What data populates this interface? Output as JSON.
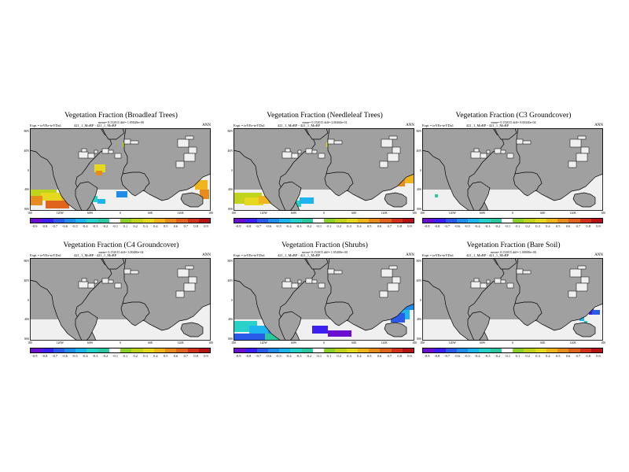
{
  "layout": {
    "columns": [
      38,
      297,
      537
    ],
    "rows": [
      142,
      307
    ]
  },
  "palette": [
    "#6a0ecf",
    "#3c1ef0",
    "#2a5ae8",
    "#1e8ce8",
    "#1eb4f0",
    "#28d2c8",
    "#2ec8a0",
    "#ffffff",
    "#8ad028",
    "#c0d41e",
    "#e6d81e",
    "#f0b41e",
    "#e68c1e",
    "#e0641e",
    "#d0321e",
    "#b41414"
  ],
  "land_gray": "#a0a0a0",
  "zero_white": "#f0f0f0",
  "y_ticks": [
    "80N",
    "40N",
    "0",
    "40S",
    "80S"
  ],
  "x_ticks": [
    "180",
    "120W",
    "60W",
    "0",
    "60E",
    "120E",
    "180"
  ],
  "panels": [
    {
      "id": "broadleaf",
      "title": "Vegetation Fraction (Broadleaf Trees)",
      "stats": "mean= 0.152015  diff= 1.05840e+00",
      "expt_label": "Expt = teYEe-teYDa1",
      "case_label": "421_1_MoBP - 421_1_MoBP",
      "season": "ANN",
      "colorbar_labels": [
        "-0.9",
        "-0.8",
        "-0.7",
        "-0.6",
        "-0.5",
        "-0.4",
        "-0.3",
        "-0.2",
        "-0.1",
        "0.1",
        "0.2",
        "0.3",
        "0.4",
        "0.5",
        "0.6",
        "0.7",
        "0.8",
        "0.9"
      ],
      "shading": "broadleaf"
    },
    {
      "id": "needleleaf",
      "title": "Vegetation Fraction (Needleleaf Trees)",
      "stats": "mean= 0.152015  diff= 2.00260e-01",
      "expt_label": "Expt = teYEe-teYDa1",
      "case_label": "421_1_MoBP - 421_1_MoBP",
      "season": "ANN",
      "colorbar_labels": [
        "-0.9",
        "-0.8",
        "-0.7",
        "-0.6",
        "-0.5",
        "-0.4",
        "-0.3",
        "-0.2",
        "-0.1",
        "0.1",
        "0.2",
        "0.3",
        "0.4",
        "0.5",
        "0.6",
        "0.7",
        "0.8",
        "0.9"
      ],
      "shading": "needleleaf"
    },
    {
      "id": "c3",
      "title": "Vegetation Fraction (C3 Groundcover)",
      "stats": "mean= 0.152015  diff= 8.00240e-04",
      "expt_label": "Expt = teYEe-teYDa1",
      "case_label": "421_1_MoBP - 421_1_MoBP",
      "season": "ANN",
      "colorbar_labels": [
        "-0.9",
        "-0.8",
        "-0.7",
        "-0.6",
        "-0.5",
        "-0.4",
        "-0.3",
        "-0.2",
        "-0.1",
        "0.1",
        "0.2",
        "0.3",
        "0.4",
        "0.5",
        "0.6",
        "0.7",
        "0.8",
        "0.9"
      ],
      "shading": "c3"
    },
    {
      "id": "c4",
      "title": "Vegetation Fraction (C4 Groundcover)",
      "stats": "mean= 0.152015  diff= 3.00480e-04",
      "expt_label": "Expt = teYEe-teYDa1",
      "case_label": "421_1_MoBP - 421_1_MoBP",
      "season": "ANN",
      "colorbar_labels": [
        "-0.9",
        "-0.8",
        "-0.7",
        "-0.6",
        "-0.5",
        "-0.4",
        "-0.3",
        "-0.2",
        "-0.1",
        "0.1",
        "0.2",
        "0.3",
        "0.4",
        "0.5",
        "0.6",
        "0.7",
        "0.8",
        "0.9"
      ],
      "shading": "c4"
    },
    {
      "id": "shrubs",
      "title": "Vegetation Fraction (Shrubs)",
      "stats": "mean= 0.152015  diff= 1.05400e+00",
      "expt_label": "Expt = teYEe-teYDa1",
      "case_label": "421_1_MoBP - 421_1_MoBP",
      "season": "ANN",
      "colorbar_labels": [
        "-0.9",
        "-0.8",
        "-0.7",
        "-0.6",
        "-0.5",
        "-0.4",
        "-0.3",
        "-0.2",
        "-0.1",
        "0.1",
        "0.2",
        "0.3",
        "0.4",
        "0.5",
        "0.6",
        "0.7",
        "0.8",
        "0.9"
      ],
      "shading": "shrubs"
    },
    {
      "id": "baresoil",
      "title": "Vegetation Fraction (Bare Soil)",
      "stats": "mean= 0.152015  diff= 1.00000e+00",
      "expt_label": "Expt = teYEe-teYDa1",
      "case_label": "421_1_MoBP - 421_1_MoBP",
      "season": "ANN",
      "colorbar_labels": [
        "-0.9",
        "-0.8",
        "-0.7",
        "-0.6",
        "-0.5",
        "-0.4",
        "-0.3",
        "-0.2",
        "-0.1",
        "0.1",
        "0.2",
        "0.3",
        "0.4",
        "0.5",
        "0.6",
        "0.7",
        "0.8",
        "0.9"
      ],
      "shading": "baresoil"
    }
  ]
}
